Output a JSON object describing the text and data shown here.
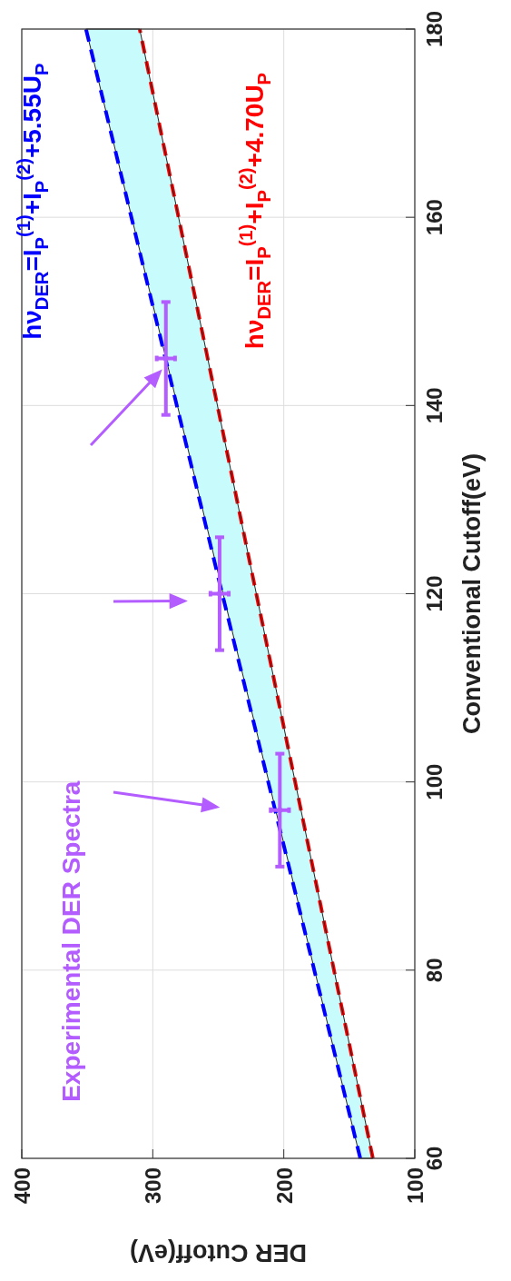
{
  "chart_data": {
    "type": "line",
    "xlabel": "DER Cutoff(eV)",
    "ylabel": "Conventional Cutoff(eV)",
    "xlim": [
      400,
      100
    ],
    "xticks": [
      400,
      300,
      200,
      100
    ],
    "ylim": [
      60,
      180
    ],
    "yticks": [
      60,
      80,
      100,
      120,
      140,
      160,
      180
    ],
    "grid": true,
    "line_style": "dashed",
    "series": [
      {
        "name": "hν$_{DER}$=I$_{P}$$^{(1)}$+I$_{P}$$^{(2)}$+5.55U$_{P}$",
        "color": "#0000ff",
        "x": [
          141.6,
          247,
          351
        ],
        "values": [
          60,
          120,
          180
        ]
      },
      {
        "name": "hν$_{DER}$=I$_{P}$$^{(1)}$+I$_{P}$$^{(2)}$+4.70U$_{P}$",
        "color": "#ff0000",
        "x": [
          132,
          221,
          310
        ],
        "values": [
          60,
          120,
          180
        ]
      },
      {
        "color": "#222222",
        "line_style": "solid",
        "x": [
          132,
          141.6,
          310,
          351
        ],
        "values": [
          60,
          66.5,
          180,
          180
        ],
        "lower": [
          60,
          60,
          156.5,
          180
        ],
        "upper": [
          60,
          66.5,
          180,
          180
        ]
      },
      {
        "type": "scatter",
        "color": "#b35cff",
        "x": [
          203,
          249,
          290
        ],
        "values": [
          97,
          120,
          145
        ],
        "errors": [
          6,
          6,
          6
        ],
        "xerrors": [
          7,
          7,
          7
        ]
      }
    ],
    "annotations": [
      "Experimental DER Spectra"
    ]
  }
}
